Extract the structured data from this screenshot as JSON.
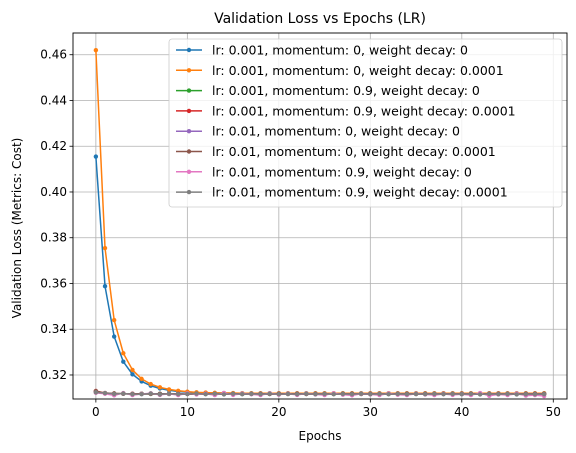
{
  "chart_data": {
    "type": "line",
    "title": "Validation Loss vs Epochs (LR)",
    "xlabel": "Epochs",
    "ylabel": "Validation Loss (Metrics: Cost)",
    "xlim": [
      -2.5,
      51.5
    ],
    "ylim": [
      0.3095,
      0.4695
    ],
    "xticks": [
      0,
      10,
      20,
      30,
      40,
      50
    ],
    "yticks": [
      0.32,
      0.34,
      0.36,
      0.38,
      0.4,
      0.42,
      0.44,
      0.46
    ],
    "ytick_labels": [
      "0.32",
      "0.34",
      "0.36",
      "0.38",
      "0.40",
      "0.42",
      "0.44",
      "0.46"
    ],
    "xtick_labels": [
      "0",
      "10",
      "20",
      "30",
      "40",
      "50"
    ],
    "grid": true,
    "legend_position": "upper right",
    "x": [
      0,
      1,
      2,
      3,
      4,
      5,
      6,
      7,
      8,
      9,
      10,
      11,
      12,
      13,
      14,
      15,
      16,
      17,
      18,
      19,
      20,
      21,
      22,
      23,
      24,
      25,
      26,
      27,
      28,
      29,
      30,
      31,
      32,
      33,
      34,
      35,
      36,
      37,
      38,
      39,
      40,
      41,
      42,
      43,
      44,
      45,
      46,
      47,
      48,
      49
    ],
    "series": [
      {
        "name": "lr: 0.001, momentum: 0, weight decay: 0",
        "color": "#1f77b4",
        "values": [
          0.4155,
          0.3588,
          0.3368,
          0.3258,
          0.3203,
          0.3172,
          0.3153,
          0.3141,
          0.3133,
          0.3128,
          0.3125,
          0.3123,
          0.3122,
          0.3121,
          0.3121,
          0.312,
          0.312,
          0.312,
          0.312,
          0.312,
          0.312,
          0.312,
          0.312,
          0.312,
          0.312,
          0.312,
          0.312,
          0.312,
          0.312,
          0.312,
          0.312,
          0.312,
          0.312,
          0.312,
          0.312,
          0.312,
          0.312,
          0.312,
          0.312,
          0.312,
          0.312,
          0.312,
          0.312,
          0.312,
          0.312,
          0.312,
          0.312,
          0.312,
          0.312,
          0.312
        ]
      },
      {
        "name": "lr: 0.001, momentum: 0, weight decay: 0.0001",
        "color": "#ff7f0e",
        "values": [
          0.462,
          0.3755,
          0.344,
          0.3295,
          0.3222,
          0.3183,
          0.316,
          0.3146,
          0.3137,
          0.3131,
          0.3127,
          0.3124,
          0.3123,
          0.3122,
          0.3121,
          0.3121,
          0.312,
          0.312,
          0.312,
          0.312,
          0.312,
          0.312,
          0.312,
          0.312,
          0.312,
          0.312,
          0.312,
          0.312,
          0.312,
          0.312,
          0.312,
          0.312,
          0.312,
          0.312,
          0.312,
          0.312,
          0.312,
          0.312,
          0.312,
          0.312,
          0.312,
          0.312,
          0.312,
          0.312,
          0.312,
          0.312,
          0.312,
          0.312,
          0.312,
          0.312
        ]
      },
      {
        "name": "lr: 0.001, momentum: 0.9, weight decay: 0",
        "color": "#2ca02c",
        "values": [
          0.3128,
          0.312,
          0.3119,
          0.3118,
          0.3117,
          0.3118,
          0.3117,
          0.3118,
          0.3117,
          0.3117,
          0.3117,
          0.3118,
          0.3117,
          0.3117,
          0.3117,
          0.3117,
          0.3117,
          0.3117,
          0.3117,
          0.3117,
          0.3117,
          0.3117,
          0.3117,
          0.3117,
          0.3117,
          0.3117,
          0.3117,
          0.3117,
          0.3117,
          0.3117,
          0.3117,
          0.3117,
          0.3117,
          0.3117,
          0.3117,
          0.3117,
          0.3117,
          0.3117,
          0.3117,
          0.3117,
          0.3117,
          0.3117,
          0.3117,
          0.3117,
          0.3117,
          0.3117,
          0.3117,
          0.3117,
          0.3117,
          0.3117
        ]
      },
      {
        "name": "lr: 0.001, momentum: 0.9, weight decay: 0.0001",
        "color": "#d62728",
        "values": [
          0.313,
          0.3121,
          0.3119,
          0.3118,
          0.3118,
          0.3117,
          0.3118,
          0.3117,
          0.3117,
          0.3117,
          0.3117,
          0.3117,
          0.3118,
          0.3117,
          0.3117,
          0.3117,
          0.3117,
          0.3117,
          0.3117,
          0.3117,
          0.3117,
          0.3117,
          0.3117,
          0.3117,
          0.3117,
          0.3117,
          0.3117,
          0.3117,
          0.3117,
          0.3117,
          0.3117,
          0.3117,
          0.3117,
          0.3117,
          0.3117,
          0.3117,
          0.3117,
          0.3117,
          0.3117,
          0.3117,
          0.3117,
          0.3117,
          0.3117,
          0.3117,
          0.3117,
          0.3117,
          0.3117,
          0.3117,
          0.3117,
          0.3117
        ]
      },
      {
        "name": "lr: 0.01, momentum: 0, weight decay: 0",
        "color": "#9467bd",
        "values": [
          0.3127,
          0.312,
          0.3118,
          0.3118,
          0.3117,
          0.3117,
          0.3118,
          0.3117,
          0.3117,
          0.3117,
          0.3117,
          0.3117,
          0.3117,
          0.3117,
          0.3117,
          0.3117,
          0.3117,
          0.3117,
          0.3117,
          0.3117,
          0.3117,
          0.3117,
          0.3117,
          0.3117,
          0.3117,
          0.3117,
          0.3117,
          0.3117,
          0.3117,
          0.3117,
          0.3117,
          0.3117,
          0.3117,
          0.3117,
          0.3117,
          0.3117,
          0.3117,
          0.3117,
          0.3117,
          0.3117,
          0.3117,
          0.3117,
          0.3117,
          0.3117,
          0.3117,
          0.3117,
          0.3117,
          0.3117,
          0.3117,
          0.3117
        ]
      },
      {
        "name": "lr: 0.01, momentum: 0, weight decay: 0.0001",
        "color": "#8c564b",
        "values": [
          0.3129,
          0.3121,
          0.3119,
          0.3118,
          0.3117,
          0.3118,
          0.3117,
          0.3117,
          0.3118,
          0.3117,
          0.3117,
          0.3117,
          0.3117,
          0.3117,
          0.3117,
          0.3117,
          0.3117,
          0.3117,
          0.3117,
          0.3117,
          0.3117,
          0.3117,
          0.3117,
          0.3117,
          0.3117,
          0.3117,
          0.3117,
          0.3117,
          0.3117,
          0.3117,
          0.3117,
          0.3117,
          0.3117,
          0.3117,
          0.3117,
          0.3117,
          0.3117,
          0.3117,
          0.3117,
          0.3117,
          0.3117,
          0.3117,
          0.3117,
          0.3117,
          0.3117,
          0.3117,
          0.3117,
          0.3117,
          0.3117,
          0.3117
        ]
      },
      {
        "name": "lr: 0.01, momentum: 0.9, weight decay: 0",
        "color": "#e377c2",
        "values": [
          0.3122,
          0.3118,
          0.3111,
          0.3121,
          0.3112,
          0.3117,
          0.312,
          0.3113,
          0.3118,
          0.3112,
          0.312,
          0.3115,
          0.3118,
          0.3112,
          0.3121,
          0.3113,
          0.3118,
          0.3116,
          0.3112,
          0.312,
          0.3114,
          0.3118,
          0.3113,
          0.3119,
          0.3115,
          0.3112,
          0.312,
          0.3114,
          0.3111,
          0.3118,
          0.3115,
          0.3112,
          0.3119,
          0.3114,
          0.3112,
          0.3118,
          0.3115,
          0.3112,
          0.3117,
          0.3113,
          0.3116,
          0.3112,
          0.3121,
          0.3109,
          0.3115,
          0.3112,
          0.3118,
          0.311,
          0.3112,
          0.3108
        ]
      },
      {
        "name": "lr: 0.01, momentum: 0.9, weight decay: 0.0001",
        "color": "#7f7f7f",
        "values": [
          0.3124,
          0.3121,
          0.3117,
          0.3119,
          0.3116,
          0.3116,
          0.3119,
          0.3115,
          0.3118,
          0.3116,
          0.3117,
          0.3119,
          0.3116,
          0.3118,
          0.3115,
          0.3118,
          0.3116,
          0.3117,
          0.3116,
          0.3118,
          0.3116,
          0.3117,
          0.3116,
          0.3118,
          0.3116,
          0.3117,
          0.3116,
          0.3117,
          0.3116,
          0.3118,
          0.3116,
          0.3117,
          0.3116,
          0.3117,
          0.3116,
          0.3117,
          0.3116,
          0.3117,
          0.3116,
          0.3117,
          0.3116,
          0.3117,
          0.3115,
          0.3117,
          0.3116,
          0.3117,
          0.3115,
          0.3116,
          0.3116,
          0.3116
        ]
      }
    ]
  }
}
